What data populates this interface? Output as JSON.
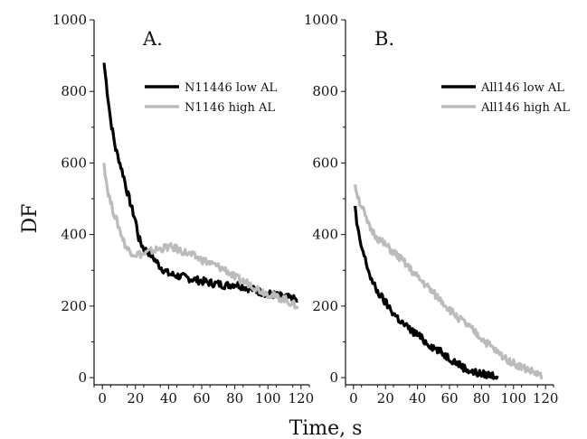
{
  "figure": {
    "ylabel": "DF",
    "xlabel": "Time, s"
  },
  "chart_data": [
    {
      "type": "line",
      "panel_label": "A.",
      "xlim": [
        -5,
        125
      ],
      "ylim": [
        -20,
        1000
      ],
      "xticks": [
        0,
        20,
        40,
        60,
        80,
        100,
        120
      ],
      "yticks": [
        0,
        200,
        400,
        600,
        800,
        1000
      ],
      "legend_position": "top-right",
      "series": [
        {
          "name": "N11446 low AL",
          "color": "#000000",
          "x": [
            1,
            3,
            5,
            8,
            10,
            13,
            15,
            18,
            20,
            22,
            25,
            28,
            30,
            35,
            40,
            45,
            50,
            55,
            60,
            65,
            70,
            75,
            80,
            85,
            90,
            95,
            100,
            105,
            110,
            115,
            118
          ],
          "y": [
            880,
            800,
            720,
            640,
            610,
            560,
            520,
            470,
            440,
            390,
            360,
            350,
            340,
            310,
            290,
            285,
            280,
            275,
            270,
            265,
            262,
            258,
            262,
            255,
            248,
            240,
            235,
            230,
            225,
            220,
            215
          ]
        },
        {
          "name": "N1146 high AL",
          "color": "#bbbbbb",
          "x": [
            1,
            3,
            5,
            7,
            10,
            13,
            15,
            18,
            20,
            25,
            30,
            35,
            40,
            45,
            50,
            55,
            60,
            65,
            70,
            75,
            80,
            85,
            90,
            95,
            100,
            105,
            110,
            115,
            118
          ],
          "y": [
            600,
            530,
            490,
            460,
            420,
            380,
            360,
            350,
            345,
            345,
            355,
            360,
            365,
            360,
            350,
            340,
            330,
            320,
            310,
            300,
            280,
            270,
            260,
            245,
            235,
            225,
            220,
            205,
            200
          ]
        }
      ]
    },
    {
      "type": "line",
      "panel_label": "B.",
      "xlim": [
        -5,
        125
      ],
      "ylim": [
        -20,
        1000
      ],
      "xticks": [
        0,
        20,
        40,
        60,
        80,
        100,
        120
      ],
      "yticks": [
        0,
        200,
        400,
        600,
        800,
        1000
      ],
      "legend_position": "top-right",
      "series": [
        {
          "name": "All146 low AL",
          "color": "#000000",
          "x": [
            1,
            2,
            4,
            6,
            8,
            10,
            12,
            15,
            20,
            25,
            30,
            35,
            40,
            45,
            50,
            55,
            60,
            65,
            70,
            75,
            80,
            85,
            90
          ],
          "y": [
            480,
            430,
            380,
            350,
            320,
            290,
            265,
            240,
            210,
            180,
            155,
            135,
            120,
            100,
            85,
            70,
            55,
            40,
            25,
            15,
            10,
            8,
            5
          ]
        },
        {
          "name": "All146 high AL",
          "color": "#bbbbbb",
          "x": [
            1,
            2,
            4,
            6,
            8,
            10,
            15,
            20,
            25,
            30,
            35,
            40,
            45,
            50,
            55,
            60,
            65,
            70,
            75,
            80,
            85,
            90,
            95,
            100,
            105,
            110,
            115,
            118
          ],
          "y": [
            540,
            520,
            490,
            470,
            440,
            420,
            390,
            370,
            350,
            330,
            305,
            280,
            260,
            235,
            215,
            190,
            170,
            150,
            130,
            110,
            90,
            70,
            55,
            40,
            30,
            20,
            10,
            0
          ]
        }
      ]
    }
  ]
}
